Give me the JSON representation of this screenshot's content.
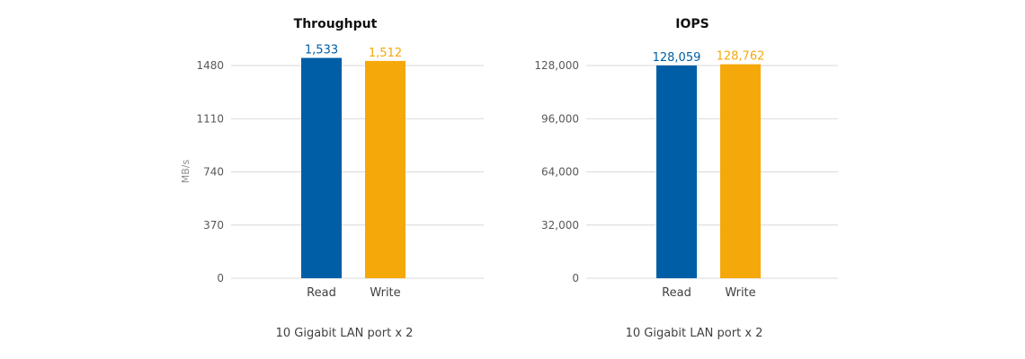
{
  "colors": {
    "read": "#005ea6",
    "write": "#f5a80a"
  },
  "chart_data": [
    {
      "type": "bar",
      "title": "Throughput",
      "ylabel": "MB/s",
      "xlabel": "10 Gigabit LAN port x 2",
      "categories": [
        "Read",
        "Write"
      ],
      "values": [
        1533,
        1512
      ],
      "value_labels": [
        "1,533",
        "1,512"
      ],
      "yticks": [
        "0",
        "370",
        "740",
        "1110",
        "1480"
      ],
      "ytick_values": [
        0,
        370,
        740,
        1110,
        1480
      ],
      "ylim": [
        0,
        1480
      ],
      "grid": true
    },
    {
      "type": "bar",
      "title": "IOPS",
      "ylabel": "",
      "xlabel": "10 Gigabit LAN port x 2",
      "categories": [
        "Read",
        "Write"
      ],
      "values": [
        128059,
        128762
      ],
      "value_labels": [
        "128,059",
        "128,762"
      ],
      "yticks": [
        "0",
        "32,000",
        "64,000",
        "96,000",
        "128,000"
      ],
      "ytick_values": [
        0,
        32000,
        64000,
        96000,
        128000
      ],
      "ylim": [
        0,
        128000
      ],
      "grid": true
    }
  ]
}
